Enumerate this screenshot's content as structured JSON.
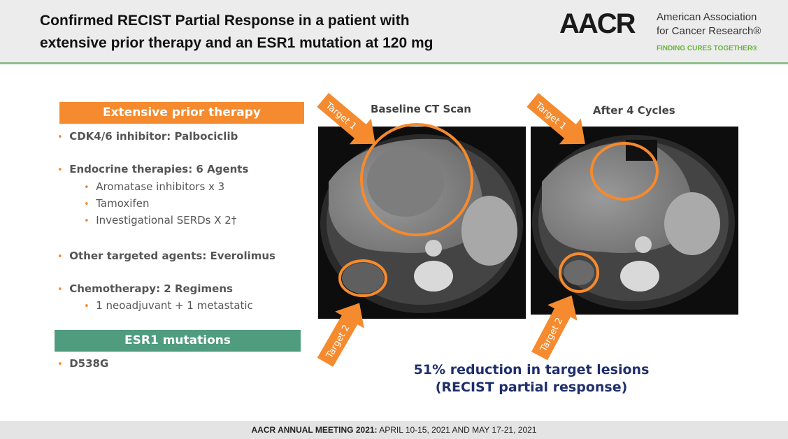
{
  "header": {
    "title_lines": [
      "Confirmed RECIST Partial Response in a patient with",
      "extensive prior therapy and an ESR1 mutation at 120 mg"
    ],
    "logo": {
      "mark": "AACR",
      "name_line1": "American Association",
      "name_line2": "for Cancer Research®",
      "tagline": "FINDING CURES TOGETHER®"
    }
  },
  "prior_therapy": {
    "heading": "Extensive prior therapy",
    "items": [
      {
        "label": "CDK4/6 inhibitor: Palbociclib"
      },
      {
        "label": "Endocrine therapies: 6 Agents",
        "subitems": [
          "Aromatase inhibitors x 3",
          "Tamoxifen",
          "Investigational SERDs X 2†"
        ]
      },
      {
        "label": "Other targeted agents: Everolimus"
      },
      {
        "label": "Chemotherapy: 2 Regimens",
        "subitems": [
          "1 neoadjuvant + 1 metastatic"
        ]
      }
    ]
  },
  "esr1": {
    "heading": "ESR1 mutations",
    "items": [
      "D538G"
    ]
  },
  "scans": [
    {
      "label": "Baseline CT Scan",
      "targets": [
        "Target 1",
        "Target 2"
      ]
    },
    {
      "label": "After 4 Cycles",
      "targets": [
        "Target 1",
        "Target 2"
      ]
    }
  ],
  "result": [
    "51% reduction in target lesions",
    "(RECIST partial response)"
  ],
  "footer": {
    "bold": "AACR ANNUAL MEETING 2021:",
    "text": "APRIL 10-15, 2021 AND MAY 17-21, 2021"
  }
}
